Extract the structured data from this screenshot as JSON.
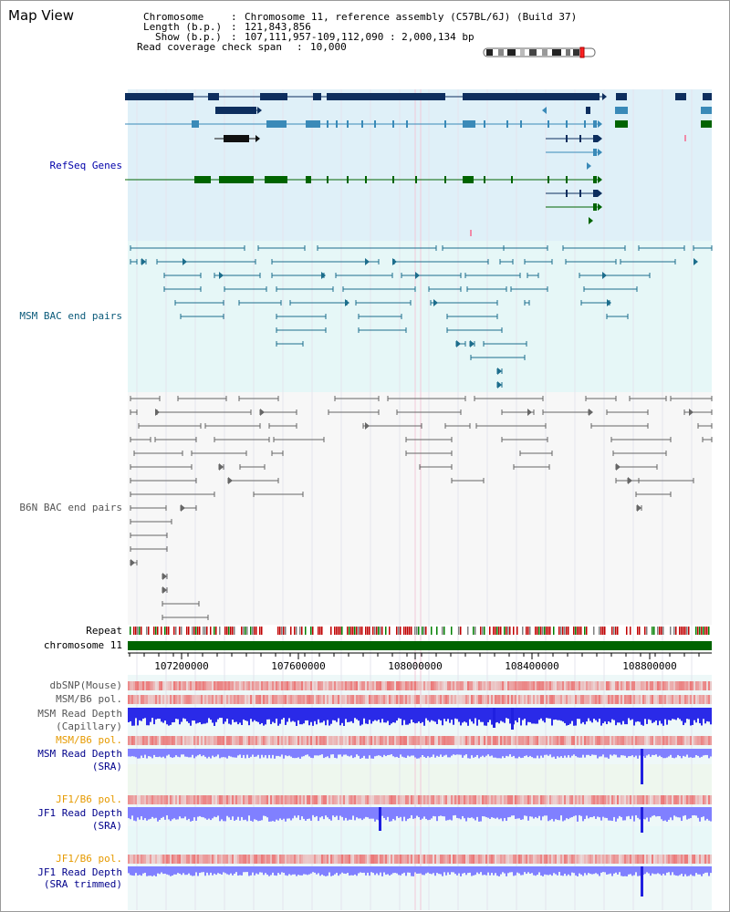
{
  "header": {
    "title": "Map View",
    "chromosome_label": "Chromosome",
    "chromosome_value": "Chromosome 11, reference assembly (C57BL/6J) (Build 37)",
    "length_label": "Length (b.p.)",
    "length_value": "121,843,856",
    "show_label": "Show (b.p.)",
    "show_value": "107,111,957-109,112,090 : 2,000,134 bp",
    "coverage_label": "Read coverage check span",
    "coverage_value": "10,000"
  },
  "tracks": {
    "refseq": "RefSeq Genes",
    "msm_bac": "MSM BAC end pairs",
    "b6n_bac": "B6N BAC end pairs",
    "repeat": "Repeat",
    "chromosome": "chromosome 11",
    "dbsnp": "dbSNP(Mouse)",
    "msm_b6_pol_1": "MSM/B6 pol.",
    "msm_depth_cap_1": "MSM Read Depth",
    "msm_depth_cap_2": "(Capillary)",
    "msm_b6_pol_2": "MSM/B6 pol.",
    "msm_depth_sra_1": "MSM Read Depth",
    "msm_depth_sra_2": "(SRA)",
    "jf1_b6_pol_1": "JF1/B6 pol.",
    "jf1_depth_sra_1": "JF1 Read Depth",
    "jf1_depth_sra_2": "(SRA)",
    "jf1_b6_pol_2": "JF1/B6 pol.",
    "jf1_depth_trim_1": "JF1 Read Depth",
    "jf1_depth_trim_2": "(SRA trimmed)"
  },
  "axis": {
    "ticks": [
      "107200000",
      "107600000",
      "108000000",
      "108400000",
      "108800000"
    ]
  },
  "colors": {
    "refseq_bg": "#dff0f8",
    "msm_bg": "#e6f7f7",
    "b6n_bg": "#f7f7f7",
    "gene_dark": "#0d2e5e",
    "gene_mid": "#3a8ab8",
    "gene_green": "#006400",
    "bac_teal": "#1c6d8c",
    "bac_gray": "#666666",
    "chromosome_green": "#006400",
    "snp_red": "#e03030",
    "depth_blue": "#2020e0",
    "depth_light": "#8080ff"
  }
}
